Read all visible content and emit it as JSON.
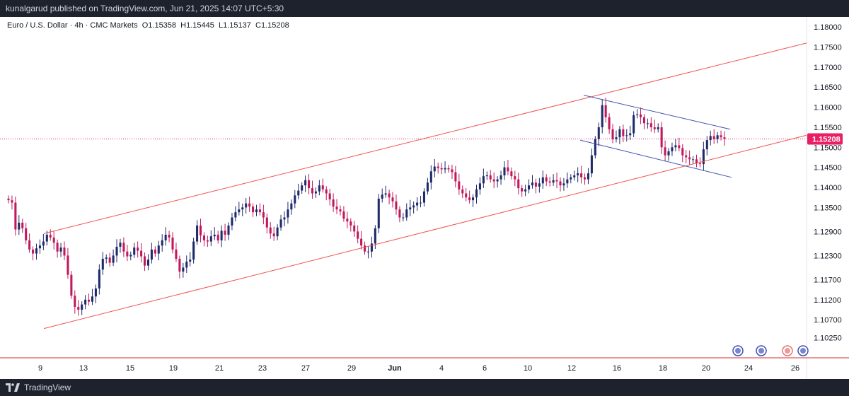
{
  "header": {
    "published_text": "kunalgarud published on TradingView.com, Jun 21, 2025 14:07 UTC+5:30"
  },
  "symbol": {
    "title": "Euro / U.S. Dollar · 4h · CMC Markets",
    "open": "O1.15358",
    "high": "H1.15445",
    "low": "L1.15137",
    "close": "C1.15208"
  },
  "footer": {
    "brand": "TradingView"
  },
  "colors": {
    "bull": "#1e2a6b",
    "bear": "#c2185b",
    "channel": "#ef5350",
    "flag": "#3f51b5",
    "price_label": "#e91e63"
  },
  "chart_data": {
    "type": "candlestick",
    "instrument": "EURUSD",
    "timeframe": "4h",
    "ylim": [
      1.0975,
      1.1825
    ],
    "y_ticks": [
      "1.18000",
      "1.17500",
      "1.17000",
      "1.16500",
      "1.16000",
      "1.15500",
      "1.15000",
      "1.14500",
      "1.14000",
      "1.13500",
      "1.12900",
      "1.12300",
      "1.11700",
      "1.11200",
      "1.10700",
      "1.10250"
    ],
    "x_ticks": [
      "9",
      "13",
      "15",
      "19",
      "21",
      "23",
      "27",
      "29",
      "Jun",
      "4",
      "6",
      "10",
      "12",
      "16",
      "18",
      "20",
      "24",
      "26"
    ],
    "last_price": "1.15208",
    "closes": [
      1.1368,
      1.1362,
      1.1295,
      1.1312,
      1.1298,
      1.1268,
      1.1245,
      1.1235,
      1.1248,
      1.1255,
      1.1265,
      1.1282,
      1.1275,
      1.1262,
      1.124,
      1.125,
      1.123,
      1.1182,
      1.113,
      1.1102,
      1.1095,
      1.1108,
      1.112,
      1.1115,
      1.1128,
      1.1148,
      1.1195,
      1.1222,
      1.1225,
      1.1212,
      1.123,
      1.1252,
      1.1262,
      1.124,
      1.1228,
      1.1232,
      1.125,
      1.1242,
      1.1228,
      1.1205,
      1.122,
      1.1245,
      1.1235,
      1.1255,
      1.1268,
      1.1282,
      1.1275,
      1.1245,
      1.1222,
      1.119,
      1.12,
      1.1215,
      1.122,
      1.1265,
      1.1305,
      1.128,
      1.1268,
      1.1265,
      1.1278,
      1.1282,
      1.1268,
      1.1292,
      1.1282,
      1.1305,
      1.1325,
      1.1338,
      1.1345,
      1.135,
      1.136,
      1.1352,
      1.1338,
      1.1345,
      1.1338,
      1.1325,
      1.13,
      1.1285,
      1.1278,
      1.13,
      1.132,
      1.1325,
      1.1345,
      1.136,
      1.138,
      1.1392,
      1.1405,
      1.1418,
      1.1398,
      1.1385,
      1.139,
      1.1405,
      1.1395,
      1.1385,
      1.137,
      1.1352,
      1.1345,
      1.134,
      1.1322,
      1.1315,
      1.1305,
      1.129,
      1.1272,
      1.1255,
      1.124,
      1.124,
      1.126,
      1.1298,
      1.1372,
      1.1382,
      1.1385,
      1.1375,
      1.1365,
      1.1345,
      1.1325,
      1.1325,
      1.1345,
      1.135,
      1.1355,
      1.1362,
      1.1362,
      1.139,
      1.1412,
      1.144,
      1.1452,
      1.1448,
      1.1445,
      1.1448,
      1.1445,
      1.1438,
      1.1415,
      1.1395,
      1.1385,
      1.1375,
      1.1368,
      1.1375,
      1.1395,
      1.141,
      1.1428,
      1.143,
      1.142,
      1.1415,
      1.142,
      1.143,
      1.145,
      1.144,
      1.1428,
      1.142,
      1.1398,
      1.139,
      1.1395,
      1.1405,
      1.1412,
      1.1402,
      1.141,
      1.1425,
      1.1415,
      1.1412,
      1.1418,
      1.1415,
      1.1405,
      1.141,
      1.142,
      1.1425,
      1.143,
      1.1435,
      1.1425,
      1.142,
      1.1435,
      1.148,
      1.152,
      1.155,
      1.1605,
      1.1575,
      1.1545,
      1.152,
      1.1525,
      1.1545,
      1.1528,
      1.153,
      1.1535,
      1.158,
      1.1582,
      1.1575,
      1.156,
      1.156,
      1.155,
      1.1545,
      1.155,
      1.15,
      1.148,
      1.149,
      1.15,
      1.1505,
      1.1498,
      1.148,
      1.1475,
      1.147,
      1.147,
      1.146,
      1.1458,
      1.1495,
      1.1518,
      1.1528,
      1.152,
      1.153,
      1.1525,
      1.15208
    ]
  }
}
